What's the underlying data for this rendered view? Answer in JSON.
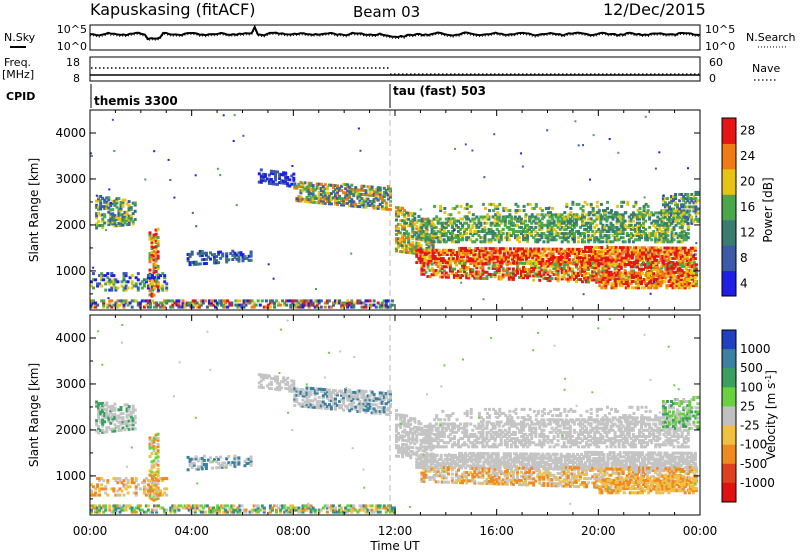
{
  "header": {
    "radar": "Kapuskasing (fitACF)",
    "beam": "Beam 03",
    "date": "12/Dec/2015"
  },
  "top_panels": {
    "nsky_label": "N.Sky",
    "nsky_ticks": [
      "10^5",
      "10^0"
    ],
    "nsearch_label": "N.Search",
    "nsearch_ticks": [
      "10^5",
      "10^0"
    ],
    "freq_label": "Freq.",
    "freq_unit": "[MHz]",
    "freq_ticks": [
      "18",
      "8"
    ],
    "nave_label": "Nave",
    "nave_ticks": [
      "60",
      "0"
    ],
    "cpid_label": "CPID",
    "cpid_segments": [
      {
        "name": "themis 3300",
        "start_hour": 0
      },
      {
        "name": "tau (fast) 503",
        "start_hour": 12
      }
    ]
  },
  "chart_data": [
    {
      "type": "heatmap",
      "title": "",
      "xlabel": "Time UT",
      "ylabel": "Slant Range [km]",
      "colorbar_label": "Power [dB]",
      "colorbar_ticks": [
        "4",
        "8",
        "12",
        "16",
        "20",
        "24",
        "28"
      ],
      "colorbar_colors": [
        "#1e1ee6",
        "#3c5aa8",
        "#3a7d6e",
        "#4aa84a",
        "#e6c414",
        "#f07a14",
        "#e61414"
      ],
      "xlim": [
        0,
        24
      ],
      "ylim": [
        150,
        4500
      ],
      "x_ticks": [
        "00:00",
        "04:00",
        "08:00",
        "12:00",
        "16:00",
        "20:00",
        "00:00"
      ],
      "y_ticks": [
        "1000",
        "2000",
        "3000",
        "4000"
      ],
      "cpid_boundary_hour": 12
    },
    {
      "type": "heatmap",
      "title": "",
      "xlabel": "Time UT",
      "ylabel": "Slant Range [km]",
      "colorbar_label": "Velocity [m s^-1]",
      "colorbar_ticks": [
        "1000",
        "500",
        "100",
        "25",
        "-25",
        "-100",
        "-500",
        "-1000"
      ],
      "colorbar_colors": [
        "#2040c0",
        "#3a80a0",
        "#3aa060",
        "#6ad040",
        "#c0c0c0",
        "#f0c040",
        "#f08a20",
        "#e04020",
        "#e01010"
      ],
      "xlim": [
        0,
        24
      ],
      "ylim": [
        150,
        4500
      ],
      "x_ticks": [
        "00:00",
        "04:00",
        "08:00",
        "12:00",
        "16:00",
        "20:00",
        "00:00"
      ],
      "y_ticks": [
        "1000",
        "2000",
        "3000",
        "4000"
      ],
      "cpid_boundary_hour": 12
    }
  ]
}
